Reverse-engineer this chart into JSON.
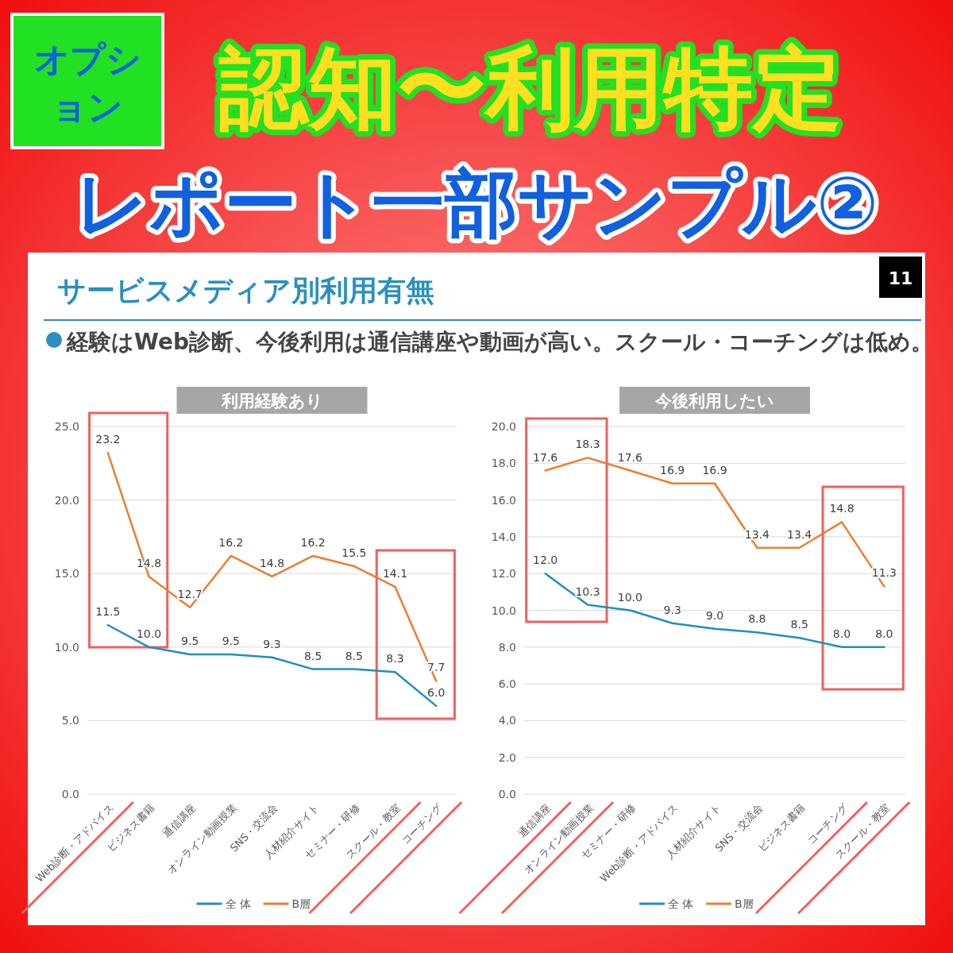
{
  "chart_data": [
    {
      "type": "line",
      "title": "利用経験あり",
      "annotations": [
        "オプション",
        "認知〜利用特定",
        "レポート一部サンプル②",
        "サービスメディア別利用有無",
        "11",
        "経験はWeb診断、今後利用は通信講座や動画が高い。スクール・コーチングは低め。"
      ],
      "categories": [
        "Web診断・アドバイス",
        "ビジネス書籍",
        "通信講座",
        "オンライン動画授業",
        "SNS・交流会",
        "人材紹介サイト",
        "セミナー・研修",
        "スクール・教室",
        "コーチング"
      ],
      "series": [
        {
          "name": "全 体",
          "color": "#1f8fbf",
          "values": [
            11.5,
            10.0,
            9.5,
            9.5,
            9.3,
            8.5,
            8.5,
            8.3,
            6.0
          ],
          "value_labels": [
            "11.5",
            "10.0",
            "9.5",
            "9.5",
            "9.3",
            "8.5",
            "8.5",
            "8.3",
            "6.0"
          ]
        },
        {
          "name": "B層",
          "color": "#ed7d31",
          "values": [
            23.2,
            14.8,
            12.7,
            16.2,
            14.8,
            16.2,
            15.5,
            14.1,
            7.7
          ],
          "value_labels": [
            "23.2",
            "14.8",
            "12.7",
            "16.2",
            "14.8",
            "16.2",
            "15.5",
            "14.1",
            "7.7"
          ]
        }
      ],
      "ylim": [
        0,
        25
      ],
      "yticks": [
        {
          "value": 0,
          "label": "0.0"
        },
        {
          "value": 5,
          "label": "5.0"
        },
        {
          "value": 10,
          "label": "10.0"
        },
        {
          "value": 15,
          "label": "15.0"
        },
        {
          "value": 20,
          "label": "20.0"
        },
        {
          "value": 25,
          "label": "25.0"
        }
      ],
      "grid": "y",
      "legend": "bottom",
      "marker": "none",
      "line_style": "solid"
    },
    {
      "type": "line",
      "title": "今後利用したい",
      "categories": [
        "通信講座",
        "オンライン動画授業",
        "セミナー・研修",
        "Web診断・アドバイス",
        "人材紹介サイト",
        "SNS・交流会",
        "ビジネス書籍",
        "コーチング",
        "スクール・教室"
      ],
      "series": [
        {
          "name": "全 体",
          "color": "#1f8fbf",
          "values": [
            12.0,
            10.3,
            10.0,
            9.3,
            9.0,
            8.8,
            8.5,
            8.0,
            8.0
          ],
          "value_labels": [
            "12.0",
            "10.3",
            "10.0",
            "9.3",
            "9.0",
            "8.8",
            "8.5",
            "8.0",
            "8.0"
          ]
        },
        {
          "name": "B層",
          "color": "#ed7d31",
          "values": [
            17.6,
            18.3,
            17.6,
            16.9,
            16.9,
            13.4,
            13.4,
            14.8,
            11.3
          ],
          "value_labels": [
            "17.6",
            "18.3",
            "17.6",
            "16.9",
            "16.9",
            "13.4",
            "13.4",
            "14.8",
            "11.3"
          ]
        }
      ],
      "ylim": [
        0,
        20
      ],
      "yticks": [
        {
          "value": 0,
          "label": "0.0"
        },
        {
          "value": 2,
          "label": "2.0"
        },
        {
          "value": 4,
          "label": "4.0"
        },
        {
          "value": 6,
          "label": "6.0"
        },
        {
          "value": 8,
          "label": "8.0"
        },
        {
          "value": 10,
          "label": "10.0"
        },
        {
          "value": 12,
          "label": "12.0"
        },
        {
          "value": 14,
          "label": "14.0"
        },
        {
          "value": 16,
          "label": "16.0"
        },
        {
          "value": 18,
          "label": "18.0"
        },
        {
          "value": 20,
          "label": "20.0"
        }
      ],
      "grid": "y",
      "legend": "bottom",
      "marker": "none",
      "line_style": "solid"
    }
  ]
}
